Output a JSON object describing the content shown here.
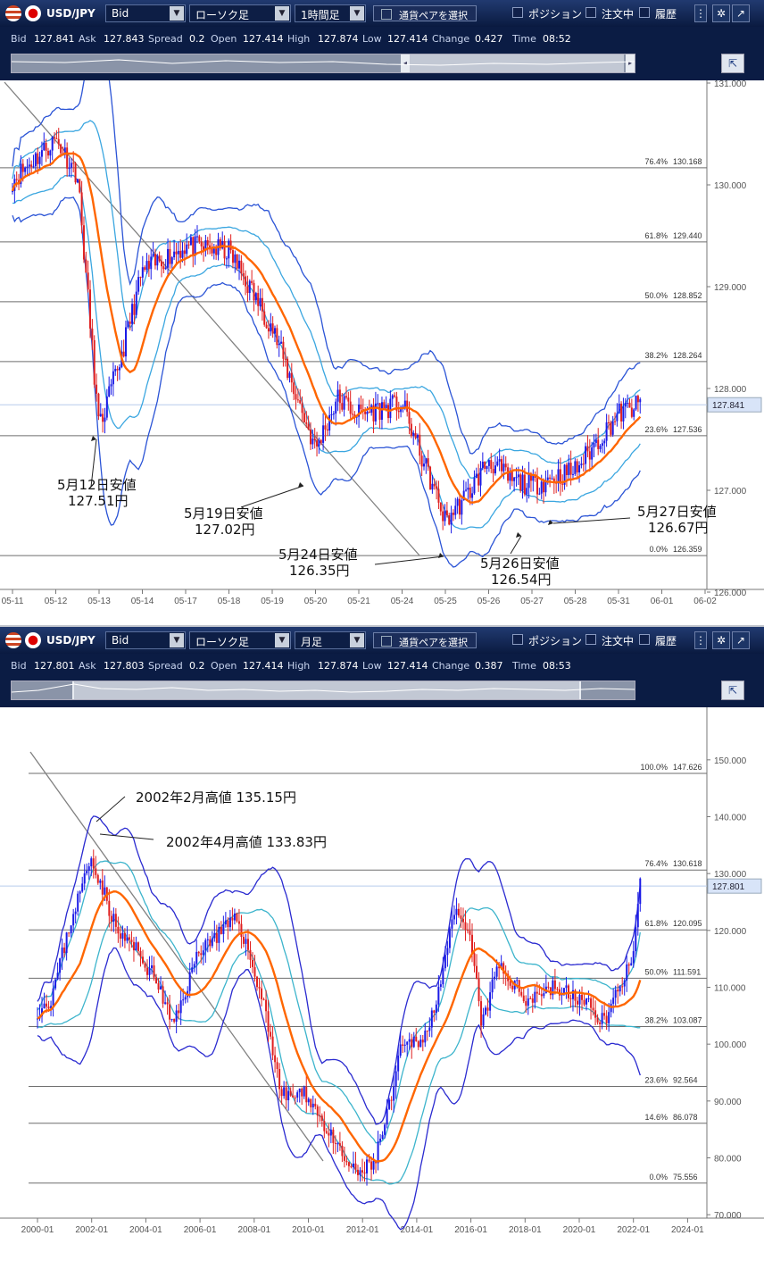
{
  "charts": [
    {
      "symbol": "USD/JPY",
      "price_type": "Bid",
      "chart_type": "ローソク足",
      "timeframe": "1時間足",
      "pair_select_label": "通貨ペアを選択",
      "toggles": [
        "ポジション",
        "注文中",
        "履歴"
      ],
      "quote": {
        "bid_label": "Bid",
        "bid": "127.841",
        "ask_label": "Ask",
        "ask": "127.843",
        "spread_label": "Spread",
        "spread": "0.2",
        "open_label": "Open",
        "open": "127.414",
        "high_label": "High",
        "high": "127.874",
        "low_label": "Low",
        "low": "127.414",
        "change_label": "Change",
        "change": "0.427",
        "time_label": "Time",
        "time": "08:52"
      },
      "current_price_label": "127.841",
      "colors": {
        "up": "#1a1ae6",
        "down": "#e02020",
        "ma": "#ff6600",
        "band_outer": "#2b54d6",
        "band_inner": "#3aa6e0",
        "fib": "#6e6e6e",
        "trend": "#808080"
      }
    },
    {
      "symbol": "USD/JPY",
      "price_type": "Bid",
      "chart_type": "ローソク足",
      "timeframe": "月足",
      "pair_select_label": "通貨ペアを選択",
      "toggles": [
        "ポジション",
        "注文中",
        "履歴"
      ],
      "quote": {
        "bid_label": "Bid",
        "bid": "127.801",
        "ask_label": "Ask",
        "ask": "127.803",
        "spread_label": "Spread",
        "spread": "0.2",
        "open_label": "Open",
        "open": "127.414",
        "high_label": "High",
        "high": "127.874",
        "low_label": "Low",
        "low": "127.414",
        "change_label": "Change",
        "change": "0.387",
        "time_label": "Time",
        "time": "08:53"
      },
      "current_price_label": "127.801",
      "colors": {
        "up": "#1a1ae6",
        "down": "#e02020",
        "ma": "#ff6600",
        "band_outer": "#2a2ad0",
        "band_inner": "#3cb4cc",
        "fib": "#6e6e6e",
        "trend": "#808080"
      }
    }
  ],
  "chart_data": [
    {
      "type": "candlestick",
      "title": "",
      "ylim": [
        126.0,
        131.0
      ],
      "y_ticks": [
        "126.000",
        "127.000",
        "128.000",
        "129.000",
        "130.000",
        "131.000"
      ],
      "x_ticks": [
        "05-11",
        "05-12",
        "05-13",
        "05-14",
        "05-17",
        "05-18",
        "05-19",
        "05-20",
        "05-21",
        "05-24",
        "05-25",
        "05-26",
        "05-27",
        "05-28",
        "05-31",
        "06-01",
        "06-02"
      ],
      "anchor": [
        [
          "05-11",
          130.05
        ],
        [
          "05-12",
          130.45
        ],
        [
          "05-12",
          130.1
        ],
        [
          "05-13",
          127.6
        ],
        [
          "05-13",
          128.3
        ],
        [
          "05-14",
          129.15
        ],
        [
          "05-17",
          129.4
        ],
        [
          "05-18",
          129.35
        ],
        [
          "05-19",
          128.6
        ],
        [
          "05-20",
          127.4
        ],
        [
          "05-20",
          127.9
        ],
        [
          "05-21",
          127.75
        ],
        [
          "05-24",
          127.85
        ],
        [
          "05-25",
          126.7
        ],
        [
          "05-25",
          126.95
        ],
        [
          "05-26",
          127.3
        ],
        [
          "05-26",
          127.1
        ],
        [
          "05-27",
          127.05
        ],
        [
          "05-28",
          127.2
        ],
        [
          "05-31",
          127.75
        ],
        [
          "05-31",
          127.84
        ]
      ],
      "fibonacci": [
        {
          "label": "76.4%",
          "value": "130.168"
        },
        {
          "label": "61.8%",
          "value": "129.440"
        },
        {
          "label": "50.0%",
          "value": "128.852"
        },
        {
          "label": "38.2%",
          "value": "128.264"
        },
        {
          "label": "23.6%",
          "value": "127.536"
        },
        {
          "label": "0.0%",
          "value": "126.359"
        }
      ],
      "annotations": [
        {
          "date": "5月12日安値",
          "price": "127.51円"
        },
        {
          "date": "5月19日安値",
          "price": "127.02円"
        },
        {
          "date": "5月24日安値",
          "price": "126.35円"
        },
        {
          "date": "5月26日安値",
          "price": "126.54円"
        },
        {
          "date": "5月27日安値",
          "price": "126.67円"
        }
      ]
    },
    {
      "type": "candlestick",
      "title": "",
      "ylim": [
        65.0,
        155.0
      ],
      "y_ticks": [
        "70.000",
        "80.000",
        "90.000",
        "100.000",
        "110.000",
        "120.000",
        "130.000",
        "140.000",
        "150.000"
      ],
      "x_ticks": [
        "2000-01",
        "2002-01",
        "2004-01",
        "2006-01",
        "2008-01",
        "2010-01",
        "2012-01",
        "2014-01",
        "2016-01",
        "2018-01",
        "2020-01",
        "2022-01",
        "2024-01"
      ],
      "anchor": [
        [
          "2000-01",
          106
        ],
        [
          "2000-07",
          108
        ],
        [
          "2001-04",
          122
        ],
        [
          "2002-01",
          133
        ],
        [
          "2003-01",
          119
        ],
        [
          "2003-06",
          118
        ],
        [
          "2004-06",
          111
        ],
        [
          "2005-01",
          103
        ],
        [
          "2006-01",
          117
        ],
        [
          "2007-06",
          122
        ],
        [
          "2008-06",
          106
        ],
        [
          "2009-01",
          91
        ],
        [
          "2010-01",
          91
        ],
        [
          "2011-01",
          82
        ],
        [
          "2011-10",
          77
        ],
        [
          "2012-06",
          79
        ],
        [
          "2013-01",
          89
        ],
        [
          "2013-06",
          99
        ],
        [
          "2014-06",
          102
        ],
        [
          "2015-06",
          123
        ],
        [
          "2016-01",
          118
        ],
        [
          "2016-06",
          103
        ],
        [
          "2017-01",
          114
        ],
        [
          "2018-01",
          108
        ],
        [
          "2019-01",
          110
        ],
        [
          "2020-01",
          108
        ],
        [
          "2021-01",
          104
        ],
        [
          "2021-06",
          110
        ],
        [
          "2022-01",
          115
        ],
        [
          "2022-04",
          127.8
        ]
      ],
      "fibonacci": [
        {
          "label": "100.0%",
          "value": "147.626"
        },
        {
          "label": "76.4%",
          "value": "130.618"
        },
        {
          "label": "61.8%",
          "value": "120.095"
        },
        {
          "label": "50.0%",
          "value": "111.591"
        },
        {
          "label": "38.2%",
          "value": "103.087"
        },
        {
          "label": "23.6%",
          "value": "92.564"
        },
        {
          "label": "14.6%",
          "value": "86.078"
        },
        {
          "label": "0.0%",
          "value": "75.556"
        }
      ],
      "annotations": [
        {
          "label": "2002年2月高値 135.15円"
        },
        {
          "label": "2002年4月高値 133.83円"
        }
      ]
    }
  ]
}
